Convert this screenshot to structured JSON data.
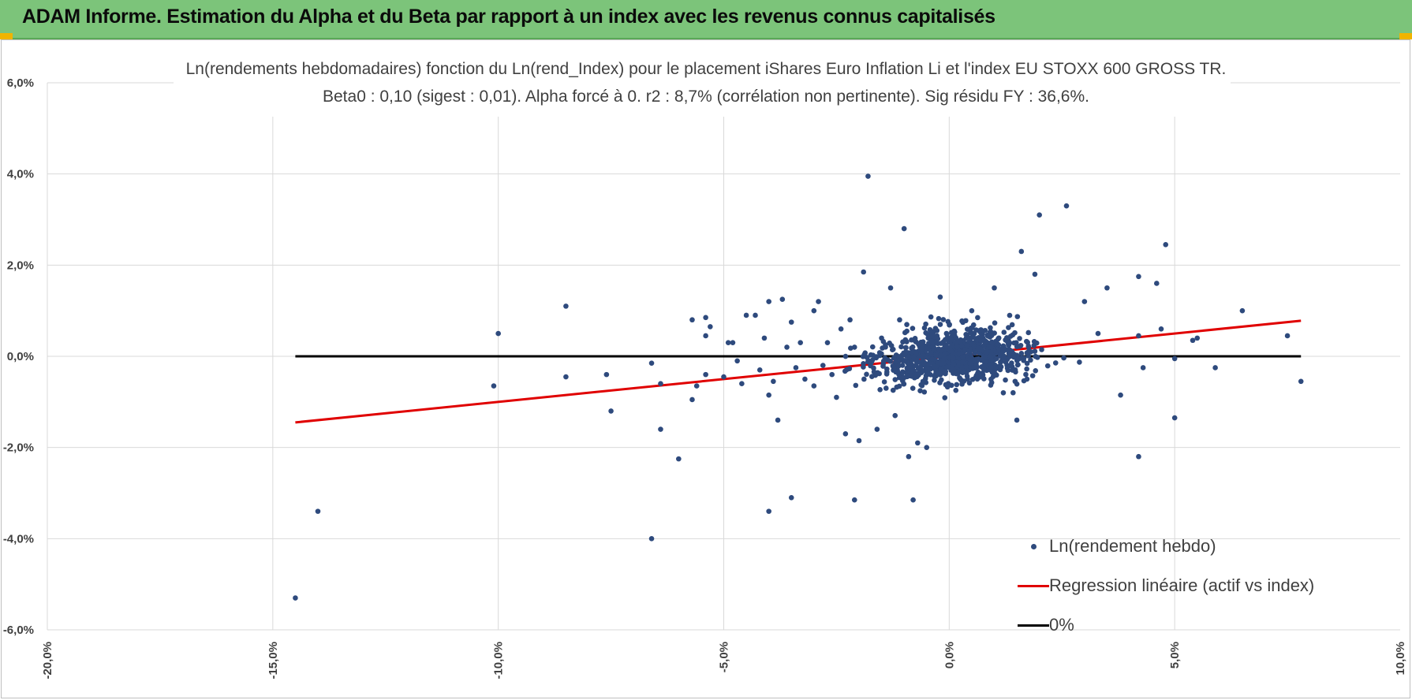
{
  "banner": {
    "title": "ADAM Informe. Estimation du Alpha et du Beta par rapport à un index avec les revenus connus capitalisés",
    "background": "#7cc47a",
    "corner_color": "#f0b400"
  },
  "chart_data": {
    "type": "scatter",
    "title": "Ln(rendements hebdomadaires) fonction du Ln(rend_Index) pour le placement iShares Euro Inflation Li et l'index EU STOXX 600 GROSS TR.",
    "subtitle": "Beta0 : 0,10  (sigest : 0,01).  Alpha forcé à 0.  r2 : 8,7% (corrélation non pertinente). Sig résidu FY : 36,6%.",
    "xlabel": "",
    "ylabel": "",
    "xlim": [
      -20,
      10
    ],
    "ylim": [
      -6,
      6
    ],
    "x_ticks": [
      "-20,0%",
      "-15,0%",
      "-10,0%",
      "-5,0%",
      "0,0%",
      "5,0%",
      "10,0%"
    ],
    "y_ticks": [
      "-6,0%",
      "-4,0%",
      "-2,0%",
      "0,0%",
      "2,0%",
      "4,0%",
      "6,0%"
    ],
    "grid": true,
    "legend_position": "bottom-right",
    "series": [
      {
        "name": "Ln(rendement hebdo)",
        "kind": "scatter",
        "color": "#2e4a7d",
        "points": [
          [
            -14.5,
            -5.3
          ],
          [
            -14.0,
            -3.4
          ],
          [
            -10.0,
            0.5
          ],
          [
            -10.1,
            -0.65
          ],
          [
            -8.5,
            1.1
          ],
          [
            -8.5,
            -0.45
          ],
          [
            -7.6,
            -0.4
          ],
          [
            -7.5,
            -1.2
          ],
          [
            -6.6,
            -0.15
          ],
          [
            -6.6,
            -4.0
          ],
          [
            -6.4,
            -1.6
          ],
          [
            -6.4,
            -0.6
          ],
          [
            -6.0,
            -2.25
          ],
          [
            -5.7,
            0.8
          ],
          [
            -5.7,
            -0.95
          ],
          [
            -5.6,
            -0.65
          ],
          [
            -5.4,
            0.85
          ],
          [
            -5.4,
            0.45
          ],
          [
            -5.3,
            0.65
          ],
          [
            -5.4,
            -0.4
          ],
          [
            -5.0,
            -0.45
          ],
          [
            -4.9,
            0.3
          ],
          [
            -4.8,
            0.3
          ],
          [
            -4.7,
            -0.1
          ],
          [
            -4.6,
            -0.6
          ],
          [
            -4.5,
            0.9
          ],
          [
            -4.3,
            0.9
          ],
          [
            -4.2,
            -0.3
          ],
          [
            -4.1,
            0.4
          ],
          [
            -4.0,
            1.2
          ],
          [
            -4.0,
            -0.85
          ],
          [
            -4.0,
            -3.4
          ],
          [
            -3.9,
            -0.55
          ],
          [
            -3.8,
            -1.4
          ],
          [
            -3.7,
            1.25
          ],
          [
            -3.6,
            0.2
          ],
          [
            -3.5,
            0.75
          ],
          [
            -3.5,
            -3.1
          ],
          [
            -3.4,
            -0.25
          ],
          [
            -3.3,
            0.3
          ],
          [
            -3.2,
            -0.5
          ],
          [
            -3.0,
            1.0
          ],
          [
            -3.0,
            -0.65
          ],
          [
            -2.9,
            1.2
          ],
          [
            -2.8,
            -0.2
          ],
          [
            -2.7,
            0.3
          ],
          [
            -2.6,
            -0.4
          ],
          [
            -2.5,
            -0.9
          ],
          [
            -2.4,
            0.6
          ],
          [
            -2.3,
            -1.7
          ],
          [
            -2.2,
            0.8
          ],
          [
            -2.1,
            0.2
          ],
          [
            -2.1,
            -3.15
          ],
          [
            -2.0,
            -1.85
          ],
          [
            -1.9,
            1.85
          ],
          [
            -1.8,
            3.95
          ],
          [
            -1.6,
            -1.6
          ],
          [
            -1.5,
            0.4
          ],
          [
            -1.4,
            -0.7
          ],
          [
            -1.3,
            1.5
          ],
          [
            -1.2,
            -1.3
          ],
          [
            -1.1,
            0.8
          ],
          [
            -1.0,
            2.8
          ],
          [
            -0.9,
            -2.2
          ],
          [
            -0.8,
            -3.15
          ],
          [
            -0.7,
            -1.9
          ],
          [
            -0.5,
            -2.0
          ],
          [
            -0.2,
            1.3
          ],
          [
            0.5,
            1.0
          ],
          [
            1.0,
            1.5
          ],
          [
            1.2,
            -0.8
          ],
          [
            1.5,
            -1.4
          ],
          [
            1.6,
            2.3
          ],
          [
            1.9,
            1.8
          ],
          [
            2.0,
            3.1
          ],
          [
            2.6,
            3.3
          ],
          [
            3.0,
            1.2
          ],
          [
            3.3,
            0.5
          ],
          [
            3.5,
            1.5
          ],
          [
            3.8,
            -0.85
          ],
          [
            4.2,
            1.75
          ],
          [
            4.2,
            -2.2
          ],
          [
            4.2,
            0.45
          ],
          [
            4.3,
            -0.25
          ],
          [
            4.6,
            1.6
          ],
          [
            4.7,
            0.6
          ],
          [
            4.8,
            2.45
          ],
          [
            5.0,
            -0.05
          ],
          [
            5.0,
            -1.35
          ],
          [
            5.4,
            0.35
          ],
          [
            5.5,
            0.4
          ],
          [
            5.9,
            -0.25
          ],
          [
            6.5,
            1.0
          ],
          [
            7.5,
            0.45
          ],
          [
            7.8,
            -0.55
          ]
        ]
      },
      {
        "name": "Regression linéaire (actif vs index)",
        "kind": "line",
        "color": "#e00000",
        "slope": 0.1,
        "intercept": 0,
        "x_range": [
          -14.5,
          7.8
        ]
      },
      {
        "name": "0%",
        "kind": "line",
        "color": "#000000",
        "constant": 0,
        "x_range": [
          -14.5,
          7.8
        ]
      }
    ]
  }
}
